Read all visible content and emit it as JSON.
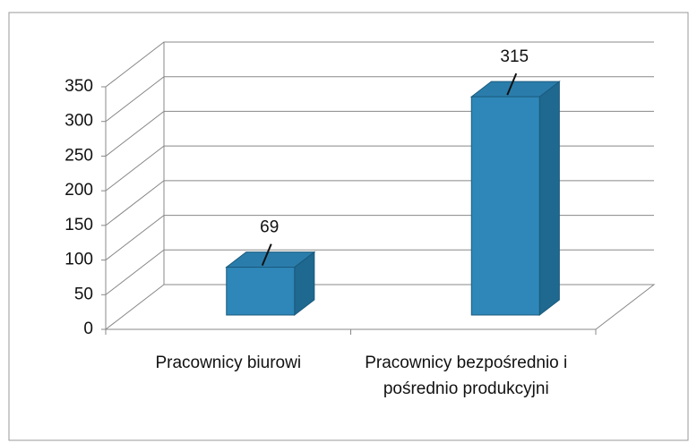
{
  "chart_data": {
    "type": "bar3d",
    "categories": [
      "Pracownicy biurowi",
      "Pracownicy bezpośrednio i pośrednio produkcyjni"
    ],
    "values": [
      69,
      315
    ],
    "color": "#2e87b8",
    "ylim": [
      0,
      350
    ],
    "yticks": [
      0,
      50,
      100,
      150,
      200,
      250,
      300,
      350
    ],
    "grid": true
  }
}
